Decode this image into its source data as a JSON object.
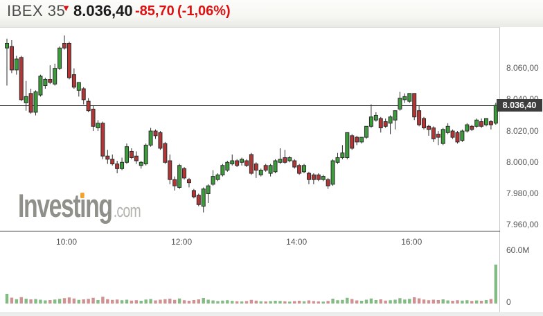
{
  "header": {
    "symbol": "IBEX 35",
    "direction_arrow": "▼",
    "last": "8.036,40",
    "change": "-85,70",
    "change_pct": "(-1,06%)"
  },
  "watermark": {
    "text": "Investing",
    "suffix": ".com"
  },
  "colors": {
    "up": "#3a9d3a",
    "down": "#b23636",
    "candle_border": "#2b2b2b",
    "wick": "#2b2b2b",
    "vol_up": "#84bb84",
    "vol_down": "#cf9191",
    "accent_red": "#dd1111",
    "axis_text": "#555555",
    "axis_line": "#333333",
    "last_price_line": "#222222",
    "last_price_bg": "#3d3d3d",
    "logo_orange": "#f2a22e"
  },
  "chart_data": {
    "type": "candlestick",
    "title": "IBEX 35 intraday 5-minute candlestick chart with volume",
    "legend_position": "none",
    "grid": false,
    "ylim": [
      7952,
      8085
    ],
    "volume_max_m": 60,
    "y_ticks": [
      {
        "label": "8.060,00",
        "value": 8060
      },
      {
        "label": "8.040,00",
        "value": 8040
      },
      {
        "label": "8.020,00",
        "value": 8020
      },
      {
        "label": "8.000,00",
        "value": 8000
      },
      {
        "label": "7.980,00",
        "value": 7980
      },
      {
        "label": "7.960,00",
        "value": 7960
      }
    ],
    "x_ticks": [
      {
        "label": "10:00",
        "index": 12
      },
      {
        "label": "12:00",
        "index": 36
      },
      {
        "label": "14:00",
        "index": 60
      },
      {
        "label": "16:00",
        "index": 84
      }
    ],
    "volume_ticks": [
      {
        "label": "60.0M",
        "value": 60
      },
      {
        "label": "0",
        "value": 0
      }
    ],
    "last_price": {
      "value": 8036.4,
      "label": "8.036,40"
    },
    "columns": [
      "time",
      "open",
      "high",
      "low",
      "close",
      "volume_m"
    ],
    "candles": [
      [
        "09:00",
        8073,
        8079,
        8049,
        8076,
        11.2
      ],
      [
        "09:05",
        8074,
        8078,
        8057,
        8059,
        6.8
      ],
      [
        "09:10",
        8059,
        8068,
        8056,
        8066,
        5.0
      ],
      [
        "09:15",
        8067,
        8068,
        8039,
        8040,
        7.4
      ],
      [
        "09:20",
        8038,
        8052,
        8033,
        8042,
        5.6
      ],
      [
        "09:25",
        8044,
        8047,
        8031,
        8032,
        4.8
      ],
      [
        "09:30",
        8032,
        8046,
        8030,
        8045,
        5.2
      ],
      [
        "09:35",
        8043,
        8056,
        8042,
        8055,
        4.4
      ],
      [
        "09:40",
        8049,
        8054,
        8047,
        8053,
        3.6
      ],
      [
        "09:45",
        8053,
        8062,
        8050,
        8051,
        4.0
      ],
      [
        "09:50",
        8050,
        8063,
        8049,
        8060,
        4.6
      ],
      [
        "09:55",
        8060,
        8074,
        8059,
        8073,
        5.4
      ],
      [
        "10:00",
        8076,
        8081,
        8072,
        8073,
        6.2
      ],
      [
        "10:05",
        8076,
        8077,
        8053,
        8054,
        7.0
      ],
      [
        "10:10",
        8056,
        8060,
        8047,
        8048,
        5.8
      ],
      [
        "10:15",
        8046,
        8051,
        8042,
        8051,
        4.2
      ],
      [
        "10:20",
        8047,
        8048,
        8037,
        8040,
        4.8
      ],
      [
        "10:25",
        8039,
        8041,
        8032,
        8033,
        5.4
      ],
      [
        "10:30",
        8034,
        8036,
        8020,
        8023,
        6.6
      ],
      [
        "10:35",
        8022,
        8027,
        8020,
        8025,
        4.0
      ],
      [
        "10:40",
        8025,
        8026,
        8002,
        8004,
        7.8
      ],
      [
        "10:45",
        8004,
        8008,
        7999,
        8002,
        5.0
      ],
      [
        "10:50",
        8002,
        8005,
        7998,
        7999,
        4.2
      ],
      [
        "10:55",
        7999,
        8001,
        7993,
        7996,
        4.6
      ],
      [
        "11:00",
        7996,
        8003,
        7995,
        8000,
        3.8
      ],
      [
        "11:05",
        8000,
        8012,
        7999,
        8010,
        4.4
      ],
      [
        "11:10",
        8007,
        8009,
        8002,
        8003,
        3.4
      ],
      [
        "11:15",
        8004,
        8007,
        7999,
        8001,
        3.8
      ],
      [
        "11:20",
        7998,
        8001,
        7996,
        8000,
        3.2
      ],
      [
        "11:25",
        7999,
        8012,
        7998,
        8011,
        4.6
      ],
      [
        "11:30",
        8011,
        8022,
        8010,
        8020,
        5.2
      ],
      [
        "11:35",
        8020,
        8021,
        8015,
        8017,
        3.6
      ],
      [
        "11:40",
        8019,
        8020,
        8008,
        8009,
        4.4
      ],
      [
        "11:45",
        8012,
        8013,
        7999,
        8000,
        5.0
      ],
      [
        "11:50",
        8001,
        8005,
        7986,
        7989,
        5.6
      ],
      [
        "11:55",
        7989,
        7991,
        7982,
        7985,
        4.2
      ],
      [
        "12:00",
        7984,
        7999,
        7983,
        7998,
        5.8
      ],
      [
        "12:05",
        7996,
        7997,
        7989,
        7990,
        3.8
      ],
      [
        "12:10",
        7989,
        7990,
        7984,
        7987,
        3.2
      ],
      [
        "12:15",
        7982,
        7983,
        7977,
        7978,
        4.0
      ],
      [
        "12:20",
        7979,
        7980,
        7972,
        7973,
        4.8
      ],
      [
        "12:25",
        7972,
        7984,
        7968,
        7983,
        6.4
      ],
      [
        "12:30",
        7980,
        7986,
        7974,
        7985,
        4.4
      ],
      [
        "12:35",
        7986,
        7995,
        7985,
        7991,
        3.6
      ],
      [
        "12:40",
        7989,
        7993,
        7988,
        7992,
        2.8
      ],
      [
        "12:45",
        7992,
        7999,
        7991,
        7998,
        3.4
      ],
      [
        "12:50",
        7995,
        8001,
        7994,
        8000,
        3.8
      ],
      [
        "12:55",
        7999,
        8005,
        7998,
        8001,
        3.0
      ],
      [
        "13:00",
        8001,
        8002,
        7997,
        7998,
        2.6
      ],
      [
        "13:05",
        8000,
        8003,
        7998,
        8002,
        2.4
      ],
      [
        "13:10",
        8001,
        8002,
        7997,
        7998,
        2.8
      ],
      [
        "13:15",
        8005,
        8006,
        7992,
        7993,
        4.2
      ],
      [
        "13:20",
        7999,
        8000,
        7990,
        7995,
        3.4
      ],
      [
        "13:25",
        7992,
        7996,
        7991,
        7995,
        2.6
      ],
      [
        "13:30",
        7998,
        7999,
        7994,
        7995,
        2.4
      ],
      [
        "13:35",
        7993,
        7999,
        7991,
        7998,
        2.8
      ],
      [
        "13:40",
        7994,
        8002,
        7993,
        8001,
        3.2
      ],
      [
        "13:45",
        8000,
        8009,
        7999,
        8002,
        3.0
      ],
      [
        "13:50",
        8003,
        8008,
        7999,
        8000,
        2.6
      ],
      [
        "13:55",
        8001,
        8004,
        8000,
        8003,
        2.2
      ],
      [
        "14:00",
        8001,
        8002,
        7996,
        7997,
        2.8
      ],
      [
        "14:05",
        7998,
        7999,
        7992,
        7993,
        3.2
      ],
      [
        "14:10",
        7994,
        7999,
        7993,
        7998,
        2.6
      ],
      [
        "14:15",
        7993,
        7994,
        7986,
        7989,
        3.6
      ],
      [
        "14:20",
        7992,
        7993,
        7986,
        7989,
        2.8
      ],
      [
        "14:25",
        7992,
        7993,
        7988,
        7989,
        2.4
      ],
      [
        "14:30",
        7989,
        7992,
        7988,
        7991,
        2.2
      ],
      [
        "14:35",
        7989,
        7990,
        7983,
        7985,
        3.0
      ],
      [
        "14:40",
        7986,
        8002,
        7985,
        8001,
        5.6
      ],
      [
        "14:45",
        8000,
        8006,
        7999,
        8003,
        3.8
      ],
      [
        "14:50",
        8003,
        8011,
        8002,
        8006,
        4.2
      ],
      [
        "14:55",
        8003,
        8019,
        8002,
        8019,
        6.6
      ],
      [
        "15:00",
        8017,
        8018,
        8008,
        8009,
        5.2
      ],
      [
        "15:05",
        8016,
        8017,
        8011,
        8013,
        3.6
      ],
      [
        "15:10",
        8013,
        8016,
        8012,
        8016,
        3.2
      ],
      [
        "15:15",
        8016,
        8023,
        8015,
        8023,
        4.4
      ],
      [
        "15:20",
        8023,
        8037,
        8022,
        8029,
        5.8
      ],
      [
        "15:25",
        8027,
        8032,
        8026,
        8030,
        4.0
      ],
      [
        "15:30",
        8028,
        8029,
        8019,
        8022,
        4.8
      ],
      [
        "15:35",
        8026,
        8028,
        8022,
        8023,
        3.4
      ],
      [
        "15:40",
        8025,
        8030,
        8018,
        8029,
        3.8
      ],
      [
        "15:45",
        8027,
        8033,
        8021,
        8033,
        4.4
      ],
      [
        "15:50",
        8034,
        8045,
        8033,
        8041,
        6.2
      ],
      [
        "15:55",
        8040,
        8044,
        8038,
        8042,
        4.6
      ],
      [
        "16:00",
        8039,
        8044,
        8038,
        8044,
        5.4
      ],
      [
        "16:05",
        8044,
        8044,
        8027,
        8029,
        7.2
      ],
      [
        "16:10",
        8033,
        8036,
        8023,
        8024,
        6.0
      ],
      [
        "16:15",
        8028,
        8029,
        8021,
        8022,
        4.6
      ],
      [
        "16:20",
        8023,
        8024,
        8017,
        8021,
        3.8
      ],
      [
        "16:25",
        8022,
        8023,
        8013,
        8015,
        4.4
      ],
      [
        "16:30",
        8018,
        8020,
        8011,
        8016,
        4.0
      ],
      [
        "16:35",
        8012,
        8022,
        8011,
        8021,
        4.8
      ],
      [
        "16:40",
        8019,
        8025,
        8018,
        8023,
        3.6
      ],
      [
        "16:45",
        8020,
        8021,
        8015,
        8016,
        3.2
      ],
      [
        "16:50",
        8019,
        8020,
        8012,
        8013,
        3.8
      ],
      [
        "16:55",
        8014,
        8021,
        8013,
        8020,
        3.4
      ],
      [
        "17:00",
        8020,
        8025,
        8019,
        8024,
        3.8
      ],
      [
        "17:05",
        8023,
        8024,
        8020,
        8021,
        3.0
      ],
      [
        "17:10",
        8023,
        8028,
        8022,
        8027,
        3.6
      ],
      [
        "17:15",
        8026,
        8028,
        8022,
        8023,
        3.2
      ],
      [
        "17:20",
        8024,
        8028,
        8023,
        8028,
        4.0
      ],
      [
        "17:25",
        8026,
        8027,
        8021,
        8024,
        5.2
      ],
      [
        "17:30",
        8025,
        8038,
        8024,
        8036.4,
        45.0
      ]
    ]
  }
}
